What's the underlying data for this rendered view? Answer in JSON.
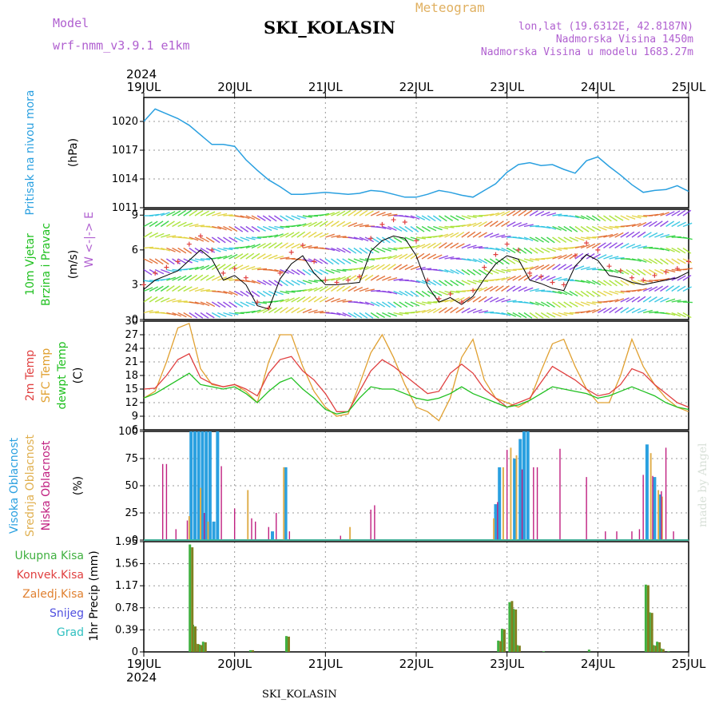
{
  "header": {
    "model_label": "Model",
    "model_name": "wrf-nmm_v3.9.1 e1km",
    "station": "SKI_KOLASIN",
    "meteogram_label": "Meteogram",
    "lonlat": "lon,lat (19.6312E, 42.8187N)",
    "elevation": "Nadmorska Visina 1450m",
    "model_elevation": "Nadmorska Visina u modelu 1683.27m",
    "year": "2024",
    "footer_station": "SKI_KOLASIN",
    "credit": "made by Angel"
  },
  "colors": {
    "pressure": "#2aa0e0",
    "wind_speed": "#000000",
    "wind_gust": "#e04040",
    "temp_2m": "#e04040",
    "temp_sfc": "#e0a030",
    "dewpoint": "#20c020",
    "cloud_high": "#2aa0e0",
    "cloud_mid": "#e0b050",
    "cloud_low": "#c02080",
    "precip_total": "#40b040",
    "precip_conv": "#e04040",
    "precip_frozen": "#e08030",
    "snow": "#5050e0",
    "graupel": "#30c0c0"
  },
  "chart_data": [
    {
      "type": "line",
      "name": "pressure",
      "ylabel_lines": [
        "Pritisak na nivou mora",
        "(hPa)"
      ],
      "ylim": [
        1011,
        1022.5
      ],
      "yticks": [
        1011,
        1014,
        1017,
        1020
      ],
      "x_categories": [
        "19JUL",
        "20JUL",
        "21JUL",
        "22JUL",
        "23JUL",
        "24JUL",
        "25JUL"
      ],
      "x_hours": [
        0,
        3,
        6,
        9,
        12,
        15,
        18,
        21,
        24,
        27,
        30,
        33,
        36,
        39,
        42,
        45,
        48,
        51,
        54,
        57,
        60,
        63,
        66,
        69,
        72,
        75,
        78,
        81,
        84,
        87,
        90,
        93,
        96,
        99,
        102,
        105,
        108,
        111,
        114,
        117,
        120,
        123,
        126,
        129,
        132,
        135,
        138,
        141,
        144
      ],
      "values": [
        1020.0,
        1021.3,
        1020.8,
        1020.3,
        1019.6,
        1018.6,
        1017.6,
        1017.6,
        1017.4,
        1016.0,
        1014.9,
        1013.9,
        1013.2,
        1012.4,
        1012.4,
        1012.5,
        1012.6,
        1012.5,
        1012.4,
        1012.5,
        1012.8,
        1012.7,
        1012.4,
        1012.1,
        1012.1,
        1012.4,
        1012.8,
        1012.6,
        1012.3,
        1012.1,
        1012.8,
        1013.5,
        1014.7,
        1015.5,
        1015.7,
        1015.4,
        1015.5,
        1015.0,
        1014.6,
        1015.9,
        1016.3,
        1015.3,
        1014.4,
        1013.4,
        1012.6,
        1012.8,
        1012.9,
        1013.3,
        1012.7
      ]
    },
    {
      "type": "line",
      "name": "wind",
      "ylabel_lines": [
        "10m Vjetar",
        "Brzina i Pravac",
        "(m/s)"
      ],
      "compass": "W <-|-> E",
      "ylim": [
        0,
        9.5
      ],
      "yticks": [
        0,
        3,
        6,
        9
      ],
      "x_hours": [
        0,
        3,
        6,
        9,
        12,
        15,
        18,
        21,
        24,
        27,
        30,
        33,
        36,
        39,
        42,
        45,
        48,
        51,
        54,
        57,
        60,
        63,
        66,
        69,
        72,
        75,
        78,
        81,
        84,
        87,
        90,
        93,
        96,
        99,
        102,
        105,
        108,
        111,
        114,
        117,
        120,
        123,
        126,
        129,
        132,
        135,
        138,
        141,
        144
      ],
      "series": [
        {
          "name": "speed",
          "values": [
            2.6,
            3.4,
            3.8,
            4.2,
            5.1,
            6.0,
            5.2,
            3.4,
            3.8,
            3.0,
            1.2,
            0.9,
            3.5,
            4.8,
            5.5,
            4.0,
            3.0,
            3.0,
            3.1,
            3.2,
            5.9,
            6.8,
            7.2,
            7.0,
            5.5,
            2.9,
            1.5,
            1.9,
            1.3,
            2.0,
            3.5,
            4.8,
            5.5,
            5.2,
            3.4,
            3.1,
            2.7,
            2.5,
            4.6,
            5.6,
            5.1,
            3.8,
            3.6,
            3.2,
            3.0,
            3.2,
            3.4,
            3.6,
            4.1
          ]
        },
        {
          "name": "gust",
          "values": [
            3.0,
            4.0,
            4.5,
            5.0,
            6.5,
            7.2,
            6.0,
            4.0,
            4.4,
            3.6,
            1.5,
            1.0,
            4.0,
            5.8,
            6.4,
            5.0,
            3.4,
            3.2,
            3.4,
            3.7,
            7.0,
            8.2,
            8.6,
            8.4,
            6.8,
            3.4,
            1.8,
            2.2,
            1.5,
            2.5,
            4.5,
            5.6,
            6.5,
            6.0,
            4.0,
            3.7,
            3.2,
            3.0,
            5.5,
            6.6,
            6.0,
            4.6,
            4.2,
            3.6,
            3.4,
            3.8,
            4.1,
            4.4,
            5.0
          ]
        }
      ]
    },
    {
      "type": "line",
      "name": "temperature",
      "ylabel_lines": [
        "2m Temp",
        "SFC Temp",
        "dewpt Temp",
        "(C)"
      ],
      "ylim": [
        6,
        30
      ],
      "yticks": [
        6,
        9,
        12,
        15,
        18,
        21,
        24,
        27,
        30
      ],
      "x_hours": [
        0,
        3,
        6,
        9,
        12,
        15,
        18,
        21,
        24,
        27,
        30,
        33,
        36,
        39,
        42,
        45,
        48,
        51,
        54,
        57,
        60,
        63,
        66,
        69,
        72,
        75,
        78,
        81,
        84,
        87,
        90,
        93,
        96,
        99,
        102,
        105,
        108,
        111,
        114,
        117,
        120,
        123,
        126,
        129,
        132,
        135,
        138,
        141,
        144
      ],
      "series": [
        {
          "name": "2m Temp",
          "values": [
            15,
            15.2,
            18,
            21.5,
            22.8,
            17.5,
            16.2,
            15.5,
            16,
            15,
            13.5,
            18.5,
            21.5,
            22.2,
            19,
            17,
            14,
            10,
            10,
            14.5,
            19,
            21.5,
            20,
            18,
            16,
            14,
            14.5,
            18.5,
            20.5,
            18.5,
            15,
            13,
            11,
            12,
            13,
            16.5,
            20,
            18.5,
            17,
            15,
            13.5,
            14,
            16,
            19.5,
            18.5,
            16,
            14,
            12,
            11
          ]
        },
        {
          "name": "SFC Temp",
          "values": [
            13,
            14.5,
            21,
            28.5,
            29.5,
            19.5,
            16,
            15.5,
            16,
            14.5,
            12,
            21,
            27,
            27,
            20,
            14.5,
            11,
            9,
            9.5,
            16,
            23,
            27,
            22,
            16,
            11,
            10,
            8,
            13,
            22,
            26,
            17,
            13,
            12,
            11,
            12.5,
            19,
            25,
            26,
            20,
            15,
            12,
            12,
            18,
            26,
            20,
            16,
            13,
            11,
            10
          ]
        },
        {
          "name": "dewpt Temp",
          "values": [
            13,
            14,
            15.5,
            17,
            18.5,
            16,
            15.5,
            15,
            15.5,
            14,
            12,
            14.5,
            16.5,
            17.5,
            15,
            13,
            10.5,
            9.5,
            10,
            13,
            15.5,
            15,
            15,
            14,
            13,
            12.5,
            13,
            14,
            15.5,
            14,
            13,
            12,
            11,
            11.5,
            12.5,
            14,
            15.5,
            15,
            14.5,
            14,
            13,
            13.5,
            14.5,
            15.5,
            14.5,
            13.5,
            12,
            11,
            10.5
          ]
        }
      ]
    },
    {
      "type": "bar",
      "name": "clouds",
      "ylabel_lines": [
        "Visoka Oblacnost",
        "Srednja Oblacnost",
        "Niska Oblacnost",
        "(%)"
      ],
      "ylim": [
        0,
        100
      ],
      "yticks": [
        0,
        25,
        50,
        75,
        100
      ],
      "series": [
        {
          "name": "high",
          "points": [
            [
              12.5,
              100
            ],
            [
              13.5,
              100
            ],
            [
              14.5,
              100
            ],
            [
              15.5,
              100
            ],
            [
              16.5,
              100
            ],
            [
              17.5,
              100
            ],
            [
              18.5,
              17
            ],
            [
              19.5,
              100
            ],
            [
              37.5,
              67
            ],
            [
              34,
              8
            ],
            [
              93,
              33
            ],
            [
              94,
              67
            ],
            [
              98,
              75
            ],
            [
              99.5,
              93
            ],
            [
              100.5,
              100
            ],
            [
              101.5,
              100
            ],
            [
              133,
              88
            ],
            [
              135,
              58
            ],
            [
              136.5,
              42
            ]
          ]
        },
        {
          "name": "mid",
          "points": [
            [
              12,
              22
            ],
            [
              15,
              48
            ],
            [
              17,
              17
            ],
            [
              27.5,
              46
            ],
            [
              37,
              67
            ],
            [
              54.5,
              12
            ],
            [
              92.5,
              20
            ],
            [
              95,
              67
            ],
            [
              97,
              85
            ],
            [
              98.5,
              78
            ],
            [
              134,
              80
            ],
            [
              136,
              46
            ],
            [
              137,
              40
            ]
          ]
        },
        {
          "name": "low",
          "points": [
            [
              5,
              70
            ],
            [
              6,
              70
            ],
            [
              8.5,
              10
            ],
            [
              11.5,
              18
            ],
            [
              16,
              25
            ],
            [
              20.5,
              68
            ],
            [
              24,
              29
            ],
            [
              28.5,
              20
            ],
            [
              29.5,
              17
            ],
            [
              33,
              12
            ],
            [
              35,
              25
            ],
            [
              38.5,
              8
            ],
            [
              52,
              4
            ],
            [
              60,
              28
            ],
            [
              61,
              32
            ],
            [
              93.5,
              35
            ],
            [
              96,
              83
            ],
            [
              100,
              65
            ],
            [
              103,
              67
            ],
            [
              104,
              67
            ],
            [
              110,
              84
            ],
            [
              117,
              58
            ],
            [
              122,
              8
            ],
            [
              125,
              8
            ],
            [
              129,
              8
            ],
            [
              131,
              10
            ],
            [
              132,
              60
            ],
            [
              134.5,
              59
            ],
            [
              136.8,
              45
            ],
            [
              138,
              85
            ],
            [
              140,
              8
            ]
          ]
        }
      ]
    },
    {
      "type": "bar",
      "name": "precipitation",
      "ylabel_lines": [
        "1hr Precip (mm)"
      ],
      "legend": [
        "Ukupna Kisa",
        "Konvek.Kisa",
        "Zaledj.Kisa",
        "Snijeg",
        "Grad"
      ],
      "ylim": [
        0,
        1.95
      ],
      "yticks": [
        0,
        0.39,
        0.78,
        1.17,
        1.56,
        1.95
      ],
      "series": [
        {
          "name": "Ukupna Kisa",
          "points": [
            [
              12.5,
              1.9
            ],
            [
              13.3,
              0.48
            ],
            [
              14,
              0.15
            ],
            [
              15,
              0.13
            ],
            [
              16,
              0.18
            ],
            [
              28.5,
              0.03
            ],
            [
              38,
              0.28
            ],
            [
              94,
              0.2
            ],
            [
              95,
              0.41
            ],
            [
              97,
              0.88
            ],
            [
              98,
              0.76
            ],
            [
              99,
              0.12
            ],
            [
              106,
              0.01
            ],
            [
              118,
              0.04
            ],
            [
              133,
              1.19
            ],
            [
              134,
              0.7
            ],
            [
              135,
              0.12
            ],
            [
              136,
              0.18
            ],
            [
              137,
              0.06
            ],
            [
              139,
              0.01
            ]
          ]
        },
        {
          "name": "Konvek.Kisa",
          "points": [
            [
              12.5,
              1.85
            ],
            [
              13.3,
              0.45
            ],
            [
              14,
              0.14
            ],
            [
              15,
              0.12
            ],
            [
              16,
              0.17
            ],
            [
              28.5,
              0.03
            ],
            [
              38,
              0.27
            ],
            [
              94,
              0.19
            ],
            [
              95,
              0.4
            ],
            [
              97,
              0.9
            ],
            [
              98,
              0.75
            ],
            [
              99,
              0.11
            ],
            [
              133,
              1.18
            ],
            [
              134,
              0.69
            ],
            [
              135,
              0.11
            ],
            [
              136,
              0.17
            ],
            [
              137,
              0.05
            ]
          ]
        }
      ]
    }
  ]
}
